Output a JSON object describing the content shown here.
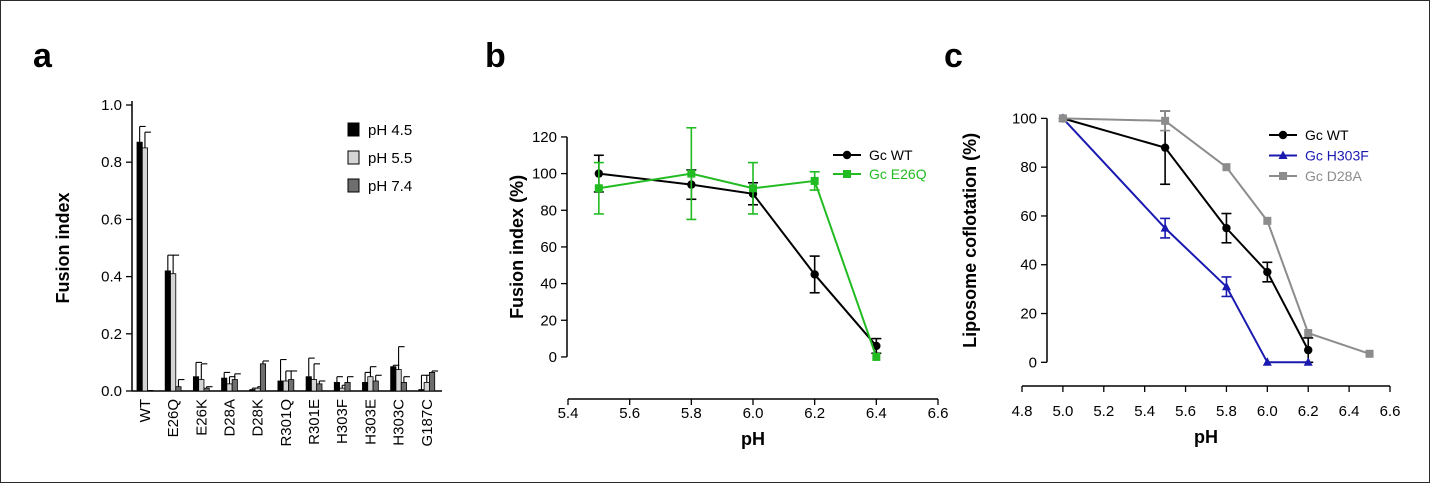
{
  "panels": {
    "a": {
      "letter": "a"
    },
    "b": {
      "letter": "b"
    },
    "c": {
      "letter": "c"
    }
  },
  "chart_data": [
    {
      "id": "a",
      "type": "bar",
      "ylabel": "Fusion index",
      "xlabel": "",
      "ylim": [
        0,
        1.0
      ],
      "yticks": [
        "0.0",
        "0.2",
        "0.4",
        "0.6",
        "0.8",
        "1.0"
      ],
      "categories": [
        "WT",
        "E26Q",
        "E26K",
        "D28A",
        "D28K",
        "R301Q",
        "R301E",
        "H303F",
        "H303E",
        "H303C",
        "G187C"
      ],
      "legend_position": "top-right",
      "series": [
        {
          "name": "pH 4.5",
          "color": "#000000",
          "values": [
            0.87,
            0.42,
            0.05,
            0.045,
            0.005,
            0.035,
            0.05,
            0.03,
            0.03,
            0.085,
            0.005
          ],
          "errors": [
            0.055,
            0.055,
            0.05,
            0.02,
            0.005,
            0.075,
            0.065,
            0.02,
            0.035,
            0.005,
            0.05
          ]
        },
        {
          "name": "pH 5.5",
          "color": "#d4d4d4",
          "values": [
            0.85,
            0.41,
            0.04,
            0.025,
            0.01,
            0.035,
            0.04,
            0.01,
            0.05,
            0.075,
            0.03
          ],
          "errors": [
            0.055,
            0.065,
            0.055,
            0.025,
            0.005,
            0.035,
            0.055,
            0.01,
            0.035,
            0.08,
            0.025
          ]
        },
        {
          "name": "pH 7.4",
          "color": "#6e6e6e",
          "values": [
            0.002,
            0.015,
            0.01,
            0.04,
            0.095,
            0.04,
            0.025,
            0.03,
            0.035,
            0.03,
            0.065
          ],
          "errors": [
            0.0,
            0.025,
            0.005,
            0.02,
            0.01,
            0.03,
            0.01,
            0.02,
            0.02,
            0.02,
            0.005
          ]
        }
      ]
    },
    {
      "id": "b",
      "type": "line",
      "xlabel": "pH",
      "ylabel": "Fusion index (%)",
      "xlim": [
        5.4,
        6.6
      ],
      "ylim": [
        -20,
        130
      ],
      "xticks": [
        "5.4",
        "5.6",
        "5.8",
        "6.0",
        "6.2",
        "6.4",
        "6.6"
      ],
      "yticks": [
        "0",
        "20",
        "40",
        "60",
        "80",
        "100",
        "120"
      ],
      "legend_position": "top-right",
      "series": [
        {
          "name": "Gc WT",
          "color": "#000000",
          "marker": "circle",
          "x": [
            5.5,
            5.8,
            6.0,
            6.2,
            6.4
          ],
          "y": [
            100,
            94,
            89,
            45,
            6
          ],
          "errors": [
            10,
            8,
            6,
            10,
            4
          ]
        },
        {
          "name": "Gc E26Q",
          "color": "#22bb22",
          "marker": "square",
          "x": [
            5.5,
            5.8,
            6.0,
            6.2,
            6.4
          ],
          "y": [
            92,
            100,
            92,
            96,
            0
          ],
          "errors": [
            14,
            25,
            14,
            5,
            0
          ]
        }
      ]
    },
    {
      "id": "c",
      "type": "line",
      "xlabel": "pH",
      "ylabel": "Liposome coflotation (%)",
      "xlim": [
        4.8,
        6.6
      ],
      "ylim": [
        -10,
        105
      ],
      "xticks": [
        "4.8",
        "5.0",
        "5.2",
        "5.4",
        "5.6",
        "5.8",
        "6.0",
        "6.2",
        "6.4",
        "6.6"
      ],
      "yticks": [
        "0",
        "20",
        "40",
        "60",
        "80",
        "100"
      ],
      "legend_position": "top-right",
      "series": [
        {
          "name": "Gc WT",
          "color": "#000000",
          "marker": "circle",
          "x": [
            5.0,
            5.5,
            5.8,
            6.0,
            6.2
          ],
          "y": [
            100,
            88,
            55,
            37,
            5
          ],
          "errors": [
            0,
            15,
            6,
            4,
            5
          ]
        },
        {
          "name": "Gc H303F",
          "color": "#1a1ab0",
          "marker": "triangle",
          "x": [
            5.0,
            5.5,
            5.8,
            6.0,
            6.2
          ],
          "y": [
            100,
            55,
            31,
            0,
            0
          ],
          "errors": [
            0,
            4,
            4,
            0,
            0
          ]
        },
        {
          "name": "Gc D28A",
          "color": "#8c8c8c",
          "marker": "square",
          "x": [
            5.0,
            5.5,
            5.8,
            6.0,
            6.2,
            6.5
          ],
          "y": [
            100,
            99,
            80,
            58,
            12,
            3.5
          ],
          "errors": [
            0,
            4,
            0,
            0,
            0,
            0
          ]
        }
      ]
    }
  ]
}
